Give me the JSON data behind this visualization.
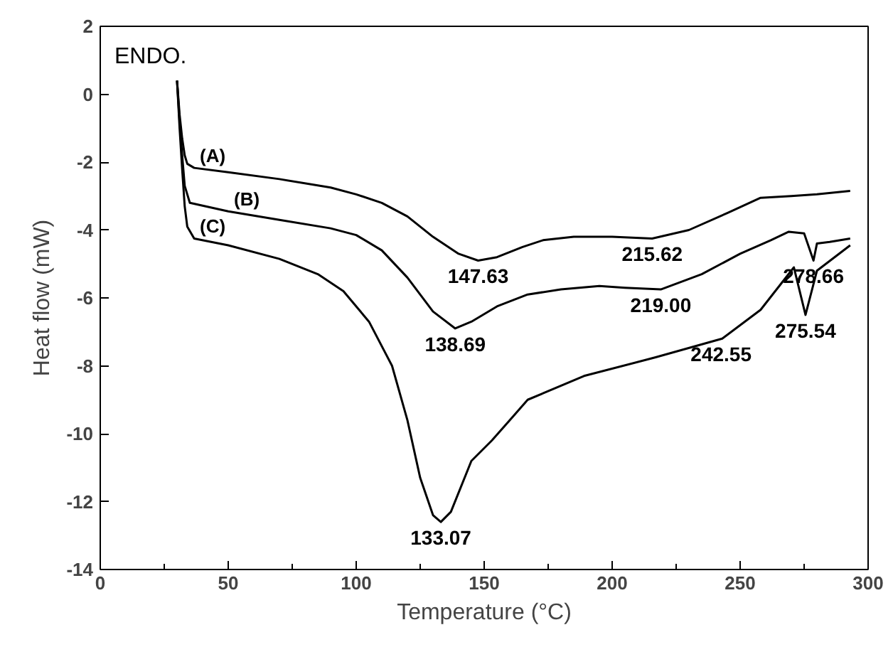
{
  "chart_data": {
    "type": "line",
    "xlabel": "Temperature (°C)",
    "ylabel": "Heat flow (mW)",
    "xlim": [
      0,
      300
    ],
    "xticks": [
      0,
      50,
      100,
      150,
      200,
      250,
      300
    ],
    "ylim": [
      -14,
      2
    ],
    "yticks": [
      2,
      0,
      -2,
      -4,
      -6,
      -8,
      -10,
      -12,
      -14
    ],
    "grid": false,
    "marker": "none",
    "line_style": "solid",
    "series": [
      {
        "name": "(A)",
        "color": "#000000",
        "x": [
          30,
          31,
          32,
          33,
          34,
          36.7,
          50,
          70,
          90,
          100,
          110,
          120,
          130,
          140,
          147.63,
          155,
          165,
          173,
          185,
          200,
          215.62,
          230,
          245,
          258,
          270,
          280,
          293
        ],
        "values": [
          0.4,
          -0.6,
          -1.3,
          -1.8,
          -2.05,
          -2.17,
          -2.3,
          -2.5,
          -2.75,
          -2.95,
          -3.2,
          -3.6,
          -4.2,
          -4.7,
          -4.9,
          -4.8,
          -4.5,
          -4.3,
          -4.2,
          -4.2,
          -4.25,
          -4.0,
          -3.5,
          -3.05,
          -3.0,
          -2.95,
          -2.85
        ]
      },
      {
        "name": "(B)",
        "color": "#000000",
        "x": [
          30,
          31,
          32,
          33,
          35,
          50,
          70,
          90,
          100,
          110,
          120,
          130,
          138.69,
          145,
          155,
          167,
          180,
          195,
          205,
          219,
          235,
          250,
          262,
          269,
          275,
          278.66,
          280,
          285,
          293
        ],
        "values": [
          0.4,
          -0.8,
          -1.8,
          -2.7,
          -3.2,
          -3.45,
          -3.7,
          -3.95,
          -4.15,
          -4.6,
          -5.4,
          -6.4,
          -6.9,
          -6.7,
          -6.25,
          -5.9,
          -5.75,
          -5.65,
          -5.7,
          -5.75,
          -5.3,
          -4.7,
          -4.3,
          -4.05,
          -4.1,
          -4.9,
          -4.4,
          -4.35,
          -4.25
        ]
      },
      {
        "name": "(C)",
        "color": "#000000",
        "x": [
          30,
          31,
          32,
          33,
          34,
          36.7,
          50,
          70,
          85,
          95,
          105,
          114,
          120,
          125,
          130,
          133.07,
          137,
          145,
          153,
          160,
          167,
          189,
          217,
          243,
          258,
          271,
          275.54,
          280,
          293
        ],
        "values": [
          0.4,
          -1.0,
          -2.2,
          -3.3,
          -3.9,
          -4.25,
          -4.45,
          -4.85,
          -5.3,
          -5.8,
          -6.7,
          -8.0,
          -9.6,
          -11.3,
          -12.4,
          -12.6,
          -12.3,
          -10.8,
          -10.2,
          -9.6,
          -9.0,
          -8.3,
          -7.75,
          -7.2,
          -6.35,
          -5.1,
          -6.5,
          -5.2,
          -4.45
        ]
      }
    ],
    "annotations": [
      "ENDO.",
      {
        "text": "147.63",
        "x": 147.63,
        "y": -4.9
      },
      {
        "text": "215.62",
        "x": 215.62,
        "y": -4.25
      },
      {
        "text": "278.66",
        "x": 278.66,
        "y": -4.9
      },
      {
        "text": "138.69",
        "x": 138.69,
        "y": -6.9
      },
      {
        "text": "219.00",
        "x": 219.0,
        "y": -5.75
      },
      {
        "text": "275.54",
        "x": 275.54,
        "y": -6.5
      },
      {
        "text": "242.55",
        "x": 242.55,
        "y": -7.2
      },
      {
        "text": "133.07",
        "x": 133.07,
        "y": -12.6
      }
    ]
  }
}
